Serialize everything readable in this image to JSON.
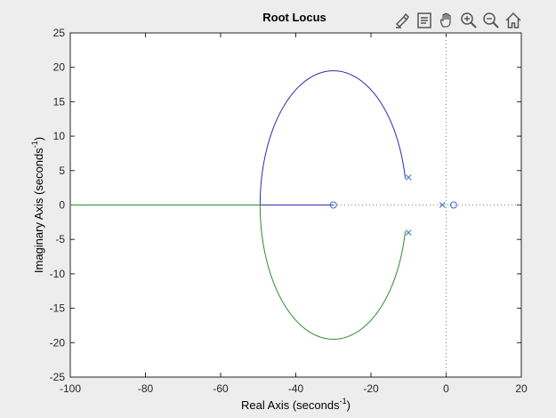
{
  "window": {
    "toolbar": [
      {
        "name": "brush-icon",
        "label": "Brush"
      },
      {
        "name": "datatip-icon",
        "label": "Data Tips"
      },
      {
        "name": "pan-hand-icon",
        "label": "Pan"
      },
      {
        "name": "zoom-in-icon",
        "label": "Zoom In"
      },
      {
        "name": "zoom-out-icon",
        "label": "Zoom Out"
      },
      {
        "name": "home-icon",
        "label": "Restore View"
      }
    ]
  },
  "chart_data": {
    "type": "line",
    "title": "Root Locus",
    "xlabel": "Real Axis (seconds",
    "ylabel": "Imaginary Axis (seconds",
    "label_superscript": "-1",
    "label_close": ")",
    "xlim": [
      -100,
      20
    ],
    "ylim": [
      -25,
      25
    ],
    "xticks": [
      -100,
      -80,
      -60,
      -40,
      -20,
      0,
      20
    ],
    "yticks": [
      -25,
      -20,
      -15,
      -10,
      -5,
      0,
      5,
      10,
      15,
      20,
      25
    ],
    "grid": false,
    "colors": {
      "branch1": "#2b2bb0",
      "branch2": "#2e8b2e",
      "marker": "#3a6fc4",
      "axis": "#262626",
      "dotted": "#808080"
    },
    "poles": [
      [
        -10,
        4
      ],
      [
        -10,
        -4
      ],
      [
        -1,
        0
      ]
    ],
    "zeros": [
      [
        -30,
        0
      ],
      [
        2,
        0
      ]
    ],
    "breakaway_point": [
      -50,
      0
    ],
    "circle_center": [
      -30,
      0
    ],
    "circle_radius": 19.5,
    "series": [
      {
        "branch": "upper",
        "from": [
          -10,
          4
        ],
        "via": [
          -30,
          19.5
        ],
        "to": [
          -50,
          0
        ],
        "then_to": [
          -30,
          0
        ]
      },
      {
        "branch": "lower",
        "from": [
          -10,
          -4
        ],
        "via": [
          -30,
          -19.5
        ],
        "to": [
          -50,
          0
        ],
        "then_to": [
          -100,
          0
        ]
      }
    ]
  }
}
